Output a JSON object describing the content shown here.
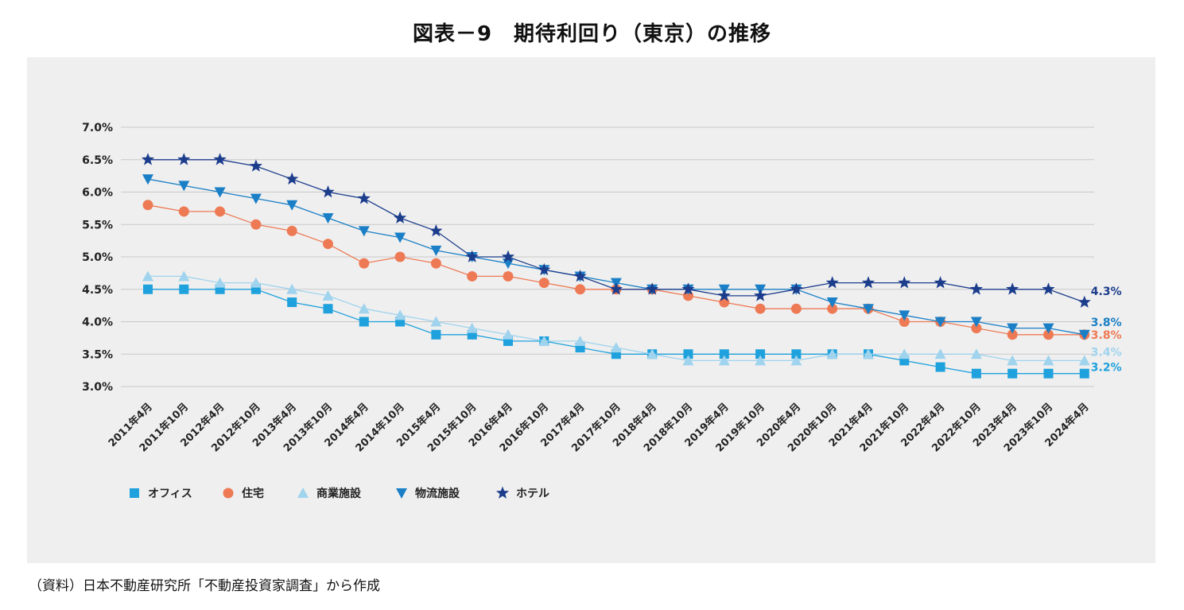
{
  "title": "図表－9　期待利回り（東京）の推移",
  "source": "（資料）日本不動産研究所「不動産投資家調査」から作成",
  "chart_data": {
    "type": "line",
    "title": "図表－9　期待利回り（東京）の推移",
    "xlabel": "",
    "ylabel": "",
    "y_ticks": [
      "3.0%",
      "3.5%",
      "4.0%",
      "4.5%",
      "5.0%",
      "5.5%",
      "6.0%",
      "6.5%",
      "7.0%"
    ],
    "ylim": [
      3.0,
      7.0
    ],
    "grid": true,
    "legend": "bottom-left",
    "categories": [
      "2011年4月",
      "2011年10月",
      "2012年4月",
      "2012年10月",
      "2013年4月",
      "2013年10月",
      "2014年4月",
      "2014年10月",
      "2015年4月",
      "2015年10月",
      "2016年4月",
      "2016年10月",
      "2017年4月",
      "2017年10月",
      "2018年4月",
      "2018年10月",
      "2019年4月",
      "2019年10月",
      "2020年4月",
      "2020年10月",
      "2021年4月",
      "2021年10月",
      "2022年4月",
      "2022年10月",
      "2023年4月",
      "2023年10月",
      "2024年4月"
    ],
    "series": [
      {
        "name": "オフィス",
        "marker": "square",
        "color": "#1ea1dc",
        "values": [
          4.5,
          4.5,
          4.5,
          4.5,
          4.3,
          4.2,
          4.0,
          4.0,
          3.8,
          3.8,
          3.7,
          3.7,
          3.6,
          3.5,
          3.5,
          3.5,
          3.5,
          3.5,
          3.5,
          3.5,
          3.5,
          3.4,
          3.3,
          3.2,
          3.2,
          3.2,
          3.2
        ],
        "end_label": "3.2%"
      },
      {
        "name": "住宅",
        "marker": "circle",
        "color": "#ee7a55",
        "values": [
          5.8,
          5.7,
          5.7,
          5.5,
          5.4,
          5.2,
          4.9,
          5.0,
          4.9,
          4.7,
          4.7,
          4.6,
          4.5,
          4.5,
          4.5,
          4.4,
          4.3,
          4.2,
          4.2,
          4.2,
          4.2,
          4.0,
          4.0,
          3.9,
          3.8,
          3.8,
          3.8
        ],
        "end_label": "3.8%"
      },
      {
        "name": "商業施設",
        "marker": "triangle-up",
        "color": "#9fd3ee",
        "values": [
          4.7,
          4.7,
          4.6,
          4.6,
          4.5,
          4.4,
          4.2,
          4.1,
          4.0,
          3.9,
          3.8,
          3.7,
          3.7,
          3.6,
          3.5,
          3.4,
          3.4,
          3.4,
          3.4,
          3.5,
          3.5,
          3.5,
          3.5,
          3.5,
          3.4,
          3.4,
          3.4
        ],
        "end_label": "3.4%"
      },
      {
        "name": "物流施設",
        "marker": "triangle-down",
        "color": "#1a7fc6",
        "values": [
          6.2,
          6.1,
          6.0,
          5.9,
          5.8,
          5.6,
          5.4,
          5.3,
          5.1,
          5.0,
          4.9,
          4.8,
          4.7,
          4.6,
          4.5,
          4.5,
          4.5,
          4.5,
          4.5,
          4.3,
          4.2,
          4.1,
          4.0,
          4.0,
          3.9,
          3.9,
          3.8
        ],
        "end_label": "3.8%"
      },
      {
        "name": "ホテル",
        "marker": "star",
        "color": "#1c3d8c",
        "values": [
          6.5,
          6.5,
          6.5,
          6.4,
          6.2,
          6.0,
          5.9,
          5.6,
          5.4,
          5.0,
          5.0,
          4.8,
          4.7,
          4.5,
          4.5,
          4.5,
          4.4,
          4.4,
          4.5,
          4.6,
          4.6,
          4.6,
          4.6,
          4.5,
          4.5,
          4.5,
          4.3
        ],
        "end_label": "4.3%"
      }
    ]
  }
}
